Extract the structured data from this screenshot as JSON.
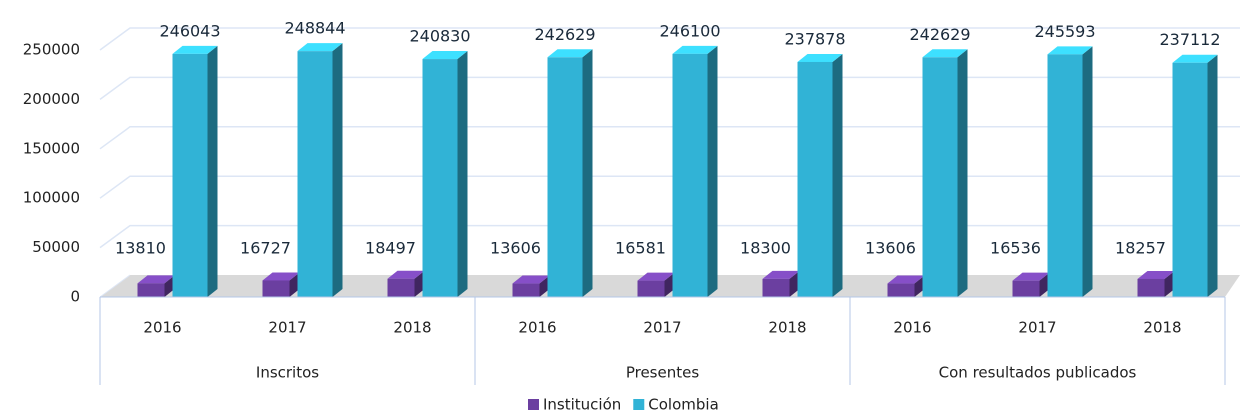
{
  "chart_data": {
    "type": "bar3d",
    "categories": [
      "2016",
      "2017",
      "2018",
      "2016",
      "2017",
      "2018",
      "2016",
      "2017",
      "2018"
    ],
    "groups": [
      "Inscritos",
      "Presentes",
      "Con resultados publicados"
    ],
    "series": [
      {
        "name": "Institución",
        "color": "#6b3fa0",
        "values": [
          13810,
          16727,
          18497,
          13606,
          16581,
          18300,
          13606,
          16536,
          18257
        ]
      },
      {
        "name": "Colombia",
        "color": "#31b3d6",
        "values": [
          246043,
          248844,
          240830,
          242629,
          246100,
          237878,
          242629,
          245593,
          237112
        ]
      }
    ],
    "ylim": [
      0,
      250000
    ],
    "yticks": [
      0,
      50000,
      100000,
      150000,
      200000,
      250000
    ],
    "grid": true,
    "legend": "bottom"
  }
}
